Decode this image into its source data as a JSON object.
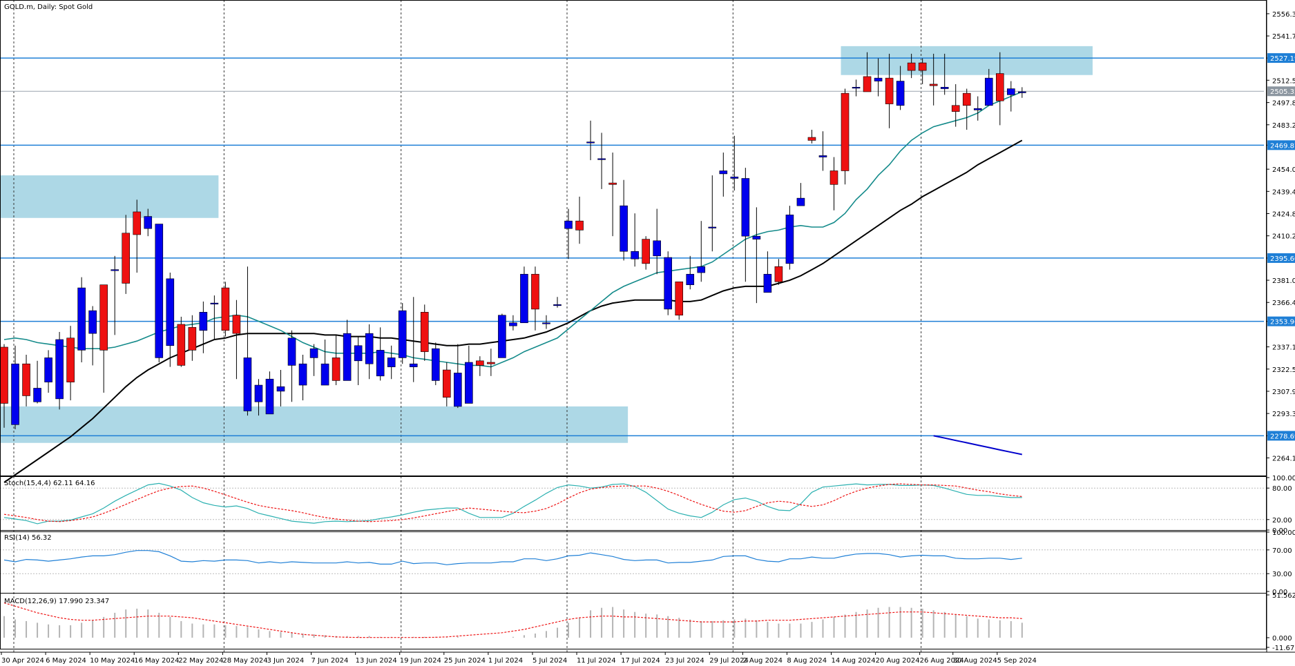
{
  "chart_data": {
    "type": "candlestick",
    "title": "GOLD.m, Daily:  Spot Gold",
    "main": {
      "ylim": [
        2253.0,
        2564.0
      ],
      "ticks": [
        "2556.33",
        "2541.72",
        "2527.19",
        "2512.58",
        "2497.89",
        "2483.28",
        "2469.87",
        "2454.06",
        "2439.45",
        "2424.84",
        "2410.23",
        "2395.60",
        "2381.01",
        "2366.40",
        "2353.96",
        "2337.18",
        "2322.57",
        "2307.96",
        "2293.35",
        "2278.69",
        "2264.13"
      ],
      "tick_values": [
        2556.33,
        2541.72,
        2527.19,
        2512.58,
        2497.89,
        2483.28,
        2469.87,
        2454.06,
        2439.45,
        2424.84,
        2410.23,
        2395.6,
        2381.01,
        2366.4,
        2353.96,
        2337.18,
        2322.57,
        2307.96,
        2293.35,
        2278.69,
        2264.13
      ],
      "levels": [
        {
          "value": 2527.19,
          "label": "2527.19"
        },
        {
          "value": 2469.87,
          "label": "2469.87"
        },
        {
          "value": 2395.6,
          "label": "2395.60"
        },
        {
          "value": 2353.96,
          "label": "2353.96"
        },
        {
          "value": 2278.69,
          "label": "2278.69"
        }
      ],
      "current_price": {
        "value": 2505.32,
        "label": "2505.32"
      },
      "zones": [
        {
          "start_index": 0,
          "end_index": 19,
          "low": 2422,
          "high": 2450
        },
        {
          "start_index": 0,
          "end_index": 56,
          "low": 2274,
          "high": 2298
        },
        {
          "start_index": 76,
          "end_index": 98,
          "low": 2516,
          "high": 2535
        }
      ],
      "colors": {
        "bull": "#0000ee",
        "bear": "#ee1111",
        "ma_fast": "#138a8a",
        "ma_slow": "#000000",
        "ma_long": "#0000cc",
        "level": "#1e7fd6",
        "zone": "#add8e6"
      }
    },
    "dates": [
      "30 Apr 2024",
      "6 May 2024",
      "10 May 2024",
      "16 May 2024",
      "22 May 2024",
      "28 May 2024",
      "3 Jun 2024",
      "7 Jun 2024",
      "13 Jun 2024",
      "19 Jun 2024",
      "25 Jun 2024",
      "1 Jul 2024",
      "5 Jul 2024",
      "11 Jul 2024",
      "17 Jul 2024",
      "23 Jul 2024",
      "29 Jul 2024",
      "2 Aug 2024",
      "8 Aug 2024",
      "14 Aug 2024",
      "20 Aug 2024",
      "26 Aug 2024",
      "30 Aug 2024",
      "5 Sep 2024"
    ],
    "date_indices": [
      0,
      4,
      8,
      12,
      16,
      20,
      24,
      28,
      32,
      36,
      40,
      44,
      48,
      52,
      56,
      60,
      64,
      67,
      71,
      75,
      79,
      83,
      86,
      90
    ],
    "candles": {
      "o": [
        2337,
        2286,
        2326,
        2301,
        2314,
        2303,
        2343,
        2335,
        2346,
        2378,
        2388,
        2412,
        2426,
        2415,
        2330,
        2338,
        2352,
        2350,
        2348,
        2366,
        2376,
        2358,
        2295,
        2301,
        2293,
        2308,
        2325,
        2312,
        2330,
        2312,
        2330,
        2315,
        2328,
        2326,
        2318,
        2324,
        2330,
        2324,
        2360,
        2315,
        2322,
        2298,
        2300,
        2328,
        2327,
        2330,
        2351,
        2353,
        2385,
        2353,
        2365,
        2415,
        2420,
        2472,
        2461,
        2445,
        2400,
        2395,
        2408,
        2397,
        2362,
        2380,
        2378,
        2386,
        2416,
        2451,
        2448,
        2410,
        2408,
        2373,
        2390,
        2392,
        2430,
        2475,
        2462,
        2453,
        2504,
        2508,
        2515,
        2512,
        2514,
        2496,
        2524,
        2524,
        2510,
        2507,
        2496,
        2504,
        2493,
        2496,
        2517,
        2503,
        2505
      ],
      "c": [
        2300,
        2326,
        2305,
        2310,
        2330,
        2342,
        2314,
        2376,
        2361,
        2335,
        2388,
        2379,
        2411,
        2423,
        2418,
        2382,
        2325,
        2335,
        2360,
        2366,
        2348,
        2346,
        2330,
        2312,
        2316,
        2311,
        2343,
        2326,
        2336,
        2326,
        2315,
        2346,
        2338,
        2346,
        2335,
        2330,
        2361,
        2326,
        2334,
        2336,
        2304,
        2320,
        2327,
        2325,
        2326,
        2358,
        2353,
        2385,
        2362,
        2353,
        2365,
        2420,
        2414,
        2472,
        2461,
        2444,
        2430,
        2400,
        2392,
        2407,
        2396,
        2358,
        2385,
        2390,
        2416,
        2453,
        2449,
        2448,
        2410,
        2385,
        2380,
        2424,
        2435,
        2473,
        2463,
        2444,
        2453,
        2508,
        2505,
        2514,
        2497,
        2512,
        2519,
        2519,
        2509,
        2508,
        2492,
        2496,
        2494,
        2514,
        2499,
        2507,
        2505
      ],
      "h": [
        2339,
        2338,
        2332,
        2328,
        2335,
        2347,
        2351,
        2383,
        2364,
        2376,
        2397,
        2424,
        2434,
        2428,
        2392,
        2386,
        2357,
        2358,
        2367,
        2371,
        2380,
        2368,
        2390,
        2316,
        2321,
        2322,
        2348,
        2332,
        2339,
        2342,
        2345,
        2355,
        2344,
        2352,
        2350,
        2338,
        2366,
        2370,
        2365,
        2340,
        2327,
        2339,
        2338,
        2331,
        2336,
        2359,
        2358,
        2390,
        2390,
        2358,
        2370,
        2428,
        2436,
        2486,
        2478,
        2465,
        2447,
        2425,
        2410,
        2428,
        2400,
        2380,
        2397,
        2420,
        2450,
        2465,
        2476,
        2455,
        2429,
        2400,
        2395,
        2430,
        2445,
        2480,
        2479,
        2462,
        2507,
        2513,
        2531,
        2527,
        2530,
        2522,
        2530,
        2527,
        2530,
        2530,
        2510,
        2507,
        2502,
        2520,
        2531,
        2512,
        2508
      ],
      "l": [
        2284,
        2283,
        2298,
        2300,
        2307,
        2296,
        2302,
        2327,
        2325,
        2307,
        2345,
        2372,
        2386,
        2410,
        2327,
        2324,
        2324,
        2328,
        2333,
        2342,
        2344,
        2316,
        2292,
        2292,
        2296,
        2298,
        2301,
        2302,
        2318,
        2317,
        2312,
        2320,
        2312,
        2316,
        2315,
        2316,
        2326,
        2314,
        2328,
        2312,
        2298,
        2297,
        2313,
        2318,
        2318,
        2349,
        2348,
        2358,
        2348,
        2349,
        2363,
        2395,
        2405,
        2460,
        2441,
        2410,
        2394,
        2390,
        2388,
        2385,
        2358,
        2355,
        2375,
        2380,
        2400,
        2436,
        2440,
        2380,
        2366,
        2373,
        2378,
        2388,
        2430,
        2471,
        2453,
        2427,
        2444,
        2502,
        2505,
        2502,
        2481,
        2493,
        2514,
        2510,
        2496,
        2503,
        2482,
        2480,
        2486,
        2496,
        2483,
        2492,
        2501
      ]
    },
    "ma_fast": [
      2342,
      2343,
      2342,
      2340,
      2339,
      2338,
      2337,
      2336,
      2336,
      2336,
      2337,
      2339,
      2341,
      2344,
      2347,
      2349,
      2351,
      2352,
      2353,
      2356,
      2357,
      2358,
      2357,
      2354,
      2351,
      2348,
      2344,
      2340,
      2337,
      2334,
      2333,
      2333,
      2333,
      2333,
      2334,
      2333,
      2332,
      2330,
      2329,
      2328,
      2327,
      2326,
      2325,
      2325,
      2324,
      2327,
      2330,
      2334,
      2337,
      2340,
      2343,
      2349,
      2355,
      2361,
      2367,
      2373,
      2377,
      2380,
      2383,
      2386,
      2387,
      2388,
      2389,
      2390,
      2393,
      2398,
      2403,
      2408,
      2411,
      2413,
      2414,
      2416,
      2417,
      2416,
      2416,
      2419,
      2425,
      2434,
      2441,
      2450,
      2457,
      2466,
      2473,
      2478,
      2482,
      2484,
      2486,
      2488,
      2491,
      2496,
      2499,
      2502,
      2505
    ],
    "ma_slow": [
      2248,
      2253,
      2258,
      2263,
      2268,
      2273,
      2278,
      2284,
      2290,
      2297,
      2304,
      2311,
      2317,
      2322,
      2326,
      2330,
      2333,
      2336,
      2339,
      2342,
      2343,
      2345,
      2346,
      2346,
      2346,
      2346,
      2346,
      2346,
      2346,
      2345,
      2345,
      2344,
      2344,
      2344,
      2343,
      2343,
      2342,
      2341,
      2340,
      2339,
      2338,
      2338,
      2339,
      2339,
      2340,
      2341,
      2342,
      2343,
      2345,
      2347,
      2350,
      2353,
      2357,
      2361,
      2364,
      2366,
      2367,
      2368,
      2368,
      2368,
      2368,
      2367,
      2367,
      2368,
      2371,
      2374,
      2376,
      2377,
      2377,
      2377,
      2379,
      2381,
      2384,
      2388,
      2392,
      2397,
      2402,
      2407,
      2412,
      2417,
      2422,
      2427,
      2431,
      2436,
      2440,
      2444,
      2448,
      2452,
      2457,
      2461,
      2465,
      2469,
      2473
    ],
    "ma_long": [
      2278.7,
      2277.2,
      2275.6,
      2274.1,
      2272.5,
      2271.0,
      2269.4,
      2267.9,
      2266.4
    ],
    "ma_long_start_index": 84,
    "stoch": {
      "label": "Stoch(15,4,4) 62.11 64.16",
      "ylim": [
        0,
        100
      ],
      "ticks": [
        "100.00",
        "80.00",
        "20.00",
        "0.00"
      ],
      "tick_values": [
        100,
        80,
        20,
        0
      ],
      "main": [
        24,
        21,
        18,
        12,
        17,
        17,
        19,
        25,
        31,
        42,
        55,
        66,
        76,
        86,
        89,
        84,
        76,
        62,
        52,
        47,
        44,
        46,
        41,
        32,
        27,
        22,
        17,
        15,
        13,
        16,
        17,
        16,
        17,
        18,
        22,
        25,
        29,
        34,
        38,
        40,
        42,
        42,
        32,
        24,
        24,
        24,
        32,
        45,
        57,
        70,
        81,
        86,
        84,
        80,
        82,
        87,
        88,
        83,
        72,
        56,
        40,
        32,
        27,
        24,
        34,
        48,
        58,
        61,
        55,
        45,
        38,
        37,
        50,
        72,
        82,
        84,
        86,
        88,
        86,
        87,
        87,
        85,
        85,
        86,
        85,
        80,
        74,
        68,
        66,
        66,
        64,
        62,
        62
      ],
      "signal": [
        30,
        27,
        24,
        20,
        17,
        16,
        18,
        21,
        25,
        32,
        40,
        49,
        58,
        67,
        75,
        80,
        83,
        84,
        80,
        74,
        67,
        60,
        53,
        47,
        43,
        40,
        37,
        33,
        28,
        24,
        21,
        19,
        17,
        16,
        17,
        18,
        20,
        23,
        27,
        31,
        35,
        39,
        42,
        40,
        38,
        36,
        34,
        33,
        36,
        41,
        50,
        61,
        71,
        78,
        81,
        83,
        84,
        84,
        84,
        80,
        74,
        66,
        57,
        49,
        42,
        36,
        34,
        37,
        45,
        52,
        55,
        53,
        48,
        45,
        48,
        56,
        66,
        74,
        80,
        84,
        87,
        88,
        87,
        86,
        86,
        85,
        84,
        80,
        76,
        73,
        69,
        66,
        64
      ],
      "colors": {
        "main": "#2ab0b0",
        "signal": "#ee1111"
      }
    },
    "rsi": {
      "label": "RSI(14) 56.32",
      "ylim": [
        0,
        100
      ],
      "ticks": [
        "100.00",
        "70.00",
        "30.00",
        "0.00"
      ],
      "tick_values": [
        100,
        70,
        30,
        0
      ],
      "values": [
        53,
        50,
        54,
        53,
        51,
        53,
        55,
        58,
        60,
        60,
        62,
        66,
        69,
        69,
        67,
        60,
        51,
        50,
        52,
        51,
        53,
        53,
        52,
        48,
        50,
        48,
        50,
        49,
        48,
        48,
        48,
        50,
        48,
        49,
        46,
        46,
        51,
        47,
        48,
        48,
        45,
        47,
        48,
        48,
        48,
        50,
        50,
        55,
        55,
        52,
        55,
        60,
        61,
        65,
        62,
        59,
        54,
        52,
        53,
        53,
        48,
        49,
        49,
        51,
        53,
        59,
        60,
        60,
        54,
        51,
        50,
        55,
        55,
        58,
        56,
        56,
        60,
        63,
        64,
        64,
        62,
        58,
        60,
        61,
        60,
        60,
        56,
        55,
        55,
        56,
        56,
        54,
        56
      ],
      "color": "#1e7fd6"
    },
    "macd": {
      "label": "MACD(12,26,9) 17.990 23.347",
      "ylim": [
        -11.673,
        51.562
      ],
      "ticks": [
        "51.562",
        "0.000",
        "-11.673"
      ],
      "tick_values": [
        51.562,
        0,
        -11.673
      ],
      "hist": [
        26,
        22,
        20,
        18,
        16,
        15,
        15,
        18,
        21,
        25,
        30,
        34,
        35,
        34,
        30,
        25,
        20,
        17,
        16,
        16,
        15,
        14,
        13,
        10,
        8,
        7,
        6,
        5,
        4,
        3,
        2,
        2,
        2,
        2,
        1,
        1,
        1,
        1,
        1,
        1,
        1,
        1,
        0,
        0,
        0,
        0,
        1,
        3,
        5,
        8,
        12,
        18,
        24,
        33,
        36,
        37,
        34,
        31,
        29,
        28,
        26,
        24,
        22,
        20,
        20,
        21,
        22,
        23,
        21,
        19,
        17,
        17,
        17,
        19,
        22,
        25,
        28,
        31,
        34,
        36,
        37,
        37,
        36,
        35,
        33,
        31,
        28,
        26,
        23,
        22,
        21,
        20,
        18
      ],
      "signal": [
        42,
        38,
        34,
        30,
        27,
        24,
        22,
        21,
        21,
        22,
        23,
        24,
        25,
        26,
        26,
        26,
        25,
        24,
        22,
        20,
        18,
        16,
        14,
        12,
        10,
        8,
        6,
        4,
        3,
        2,
        1,
        0.5,
        0.3,
        0.2,
        0.2,
        0.2,
        0.2,
        0.2,
        0.3,
        0.5,
        1,
        2,
        3,
        4,
        5,
        6,
        8,
        10,
        13,
        16,
        19,
        22,
        24,
        25,
        26,
        26,
        25,
        25,
        24,
        23,
        22,
        21,
        20,
        19,
        19,
        19,
        19,
        20,
        20,
        21,
        21,
        21,
        22,
        23,
        24,
        25,
        26,
        27,
        28,
        29,
        30,
        31,
        31,
        31,
        30,
        29,
        28,
        27,
        26,
        25,
        24,
        24,
        23
      ],
      "colors": {
        "hist": "#b4b4b4",
        "signal": "#ee1111"
      }
    }
  }
}
